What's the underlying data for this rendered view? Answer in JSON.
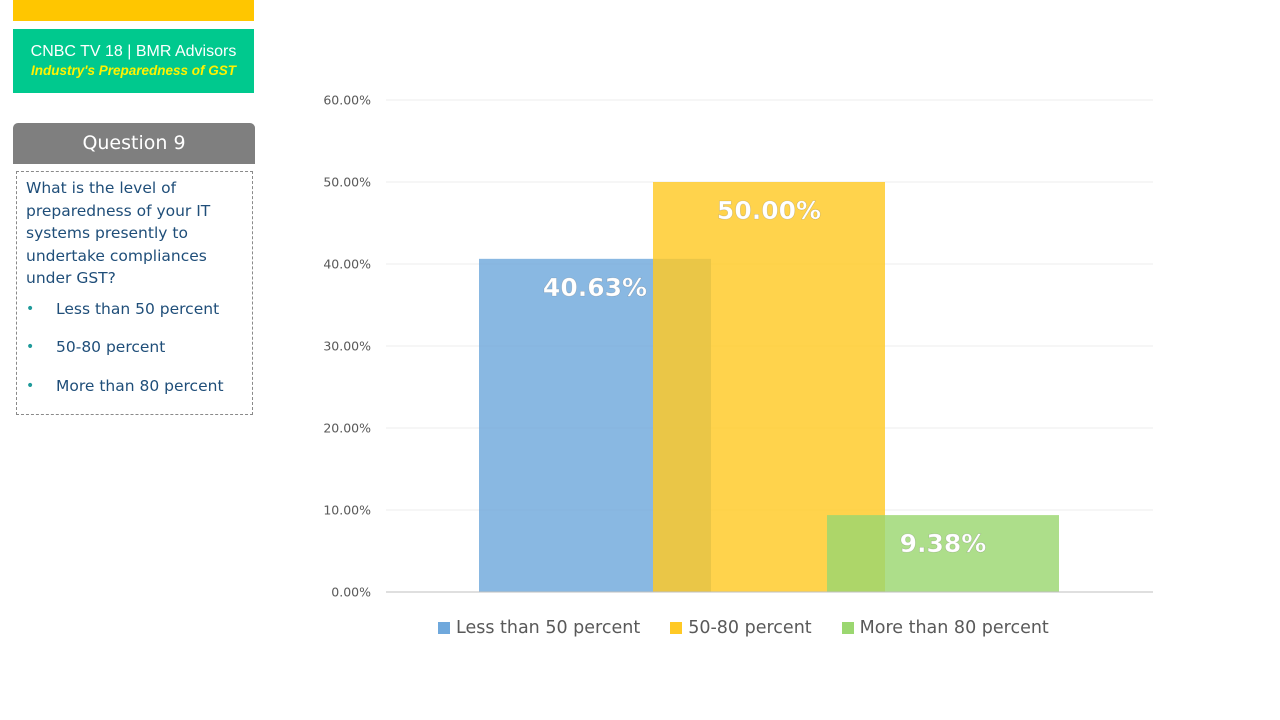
{
  "brand": {
    "title": "CNBC TV 18 | BMR Advisors",
    "subtitle": "Industry's Preparedness of GST",
    "accent_color": "#FFC600",
    "box_color": "#00C98E"
  },
  "question": {
    "header": "Question 9",
    "text": "What is the level of preparedness of your IT systems presently to undertake compliances under GST?",
    "options": [
      "Less than 50 percent",
      "50-80 percent",
      "More than 80 percent"
    ]
  },
  "chart_data": {
    "type": "bar",
    "categories": [
      ""
    ],
    "series": [
      {
        "name": "Less than 50 percent",
        "values": [
          40.63
        ],
        "label": "40.63%",
        "color": "#6FA8DC"
      },
      {
        "name": "50-80 percent",
        "values": [
          50.0
        ],
        "label": "50.00%",
        "color": "#FFC925"
      },
      {
        "name": "More than 80 percent",
        "values": [
          9.38
        ],
        "label": "9.38%",
        "color": "#9BD770"
      }
    ],
    "ylim": [
      0,
      60
    ],
    "yticks": [
      "0.00%",
      "10.00%",
      "20.00%",
      "30.00%",
      "40.00%",
      "50.00%",
      "60.00%"
    ],
    "grid": true,
    "legend": "bottom",
    "bars_overlap": true
  }
}
